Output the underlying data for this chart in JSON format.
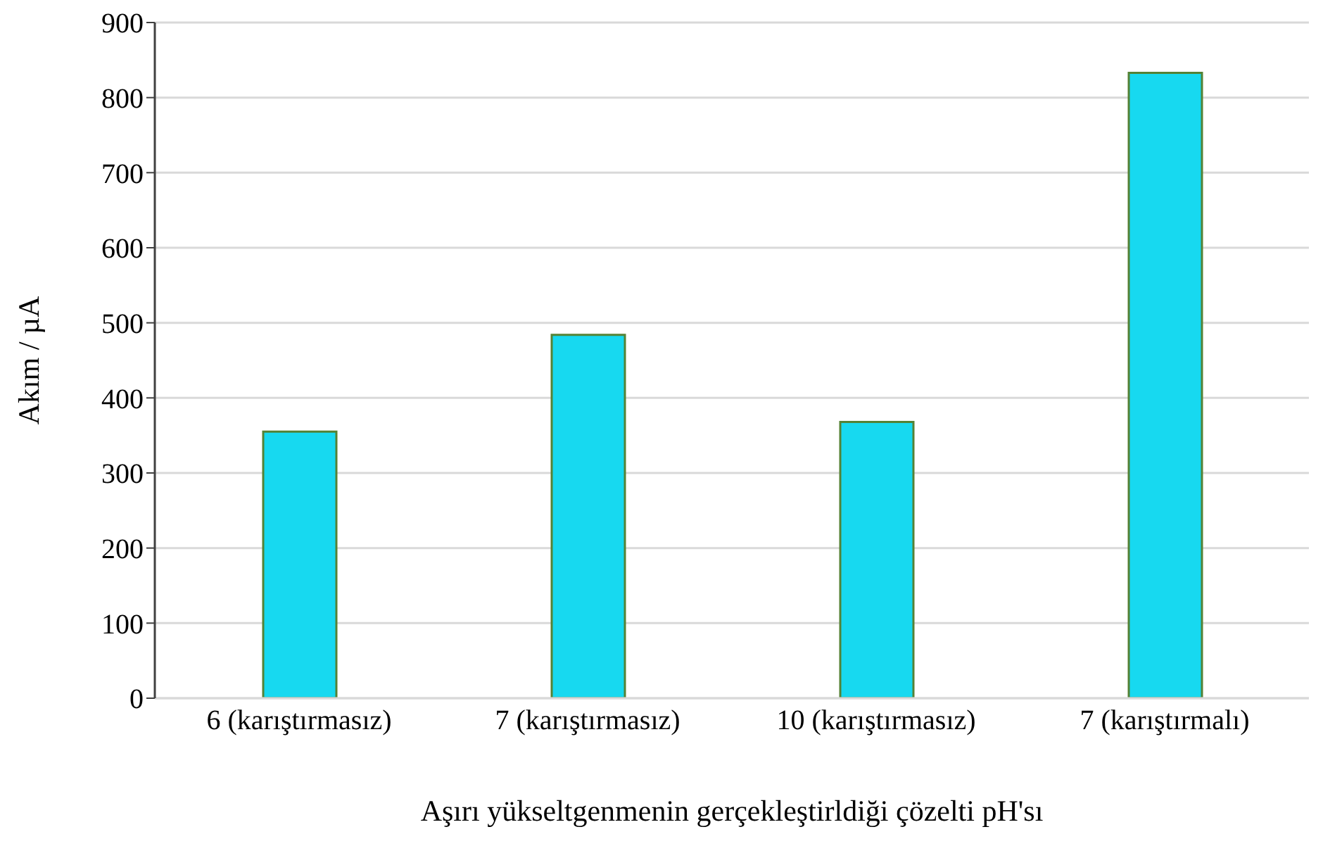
{
  "chart_data": {
    "type": "bar",
    "xlabel": "Aşırı yükseltgenmenin gerçekleştirldiği çözelti pH'sı",
    "ylabel": "Akım / µA",
    "categories": [
      "6 (karıştırmasız)",
      "7 (karıştırmasız)",
      "10 (karıştırmasız)",
      "7 (karıştırmalı)"
    ],
    "values": [
      355,
      484,
      368,
      833
    ],
    "color": "#17d9f0",
    "ylim": [
      0,
      900
    ],
    "yticks": [
      0,
      100,
      200,
      300,
      400,
      500,
      600,
      700,
      800,
      900
    ],
    "grid": "y"
  }
}
